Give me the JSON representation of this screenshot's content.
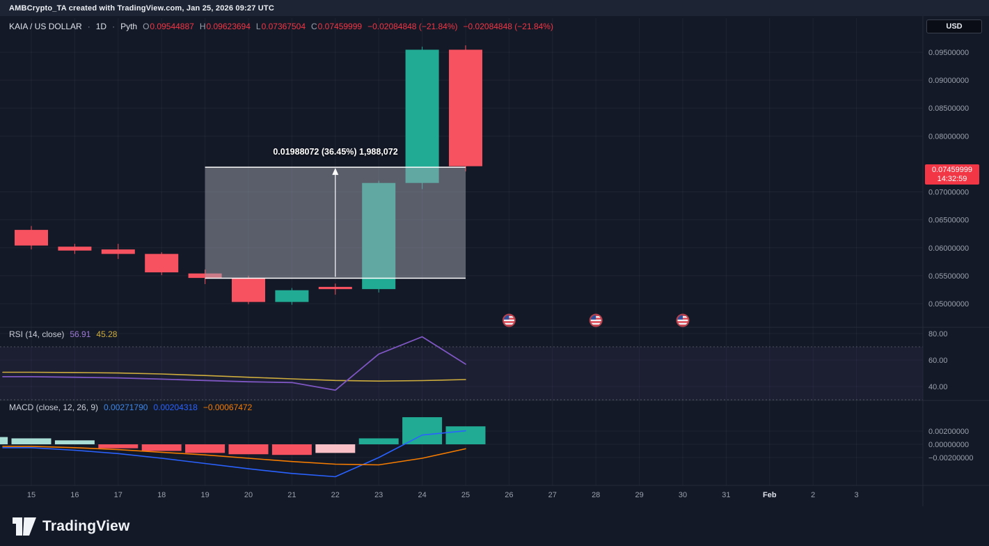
{
  "header": {
    "attribution": "AMBCrypto_TA created with TradingView.com, Jan 25, 2026 09:27 UTC",
    "currency_button": "USD"
  },
  "legend": {
    "symbol": "KAIA / US DOLLAR",
    "separator": "·",
    "interval": "1D",
    "source": "Pyth",
    "ohlc": [
      {
        "prefix": "O",
        "value": "0.09544887"
      },
      {
        "prefix": "H",
        "value": "0.09623694"
      },
      {
        "prefix": "L",
        "value": "0.07367504"
      },
      {
        "prefix": "C",
        "value": "0.07459999"
      }
    ],
    "change_abs_pct": "−0.02084848 (−21.84%)",
    "change_abs_pct_2": "−0.02084848 (−21.84%)"
  },
  "price_scale": {
    "ticks": [
      {
        "label": "0.09500000",
        "value": 0.095
      },
      {
        "label": "0.09000000",
        "value": 0.09
      },
      {
        "label": "0.08500000",
        "value": 0.085
      },
      {
        "label": "0.08000000",
        "value": 0.08
      },
      {
        "label": "0.07000000",
        "value": 0.07
      },
      {
        "label": "0.06500000",
        "value": 0.065
      },
      {
        "label": "0.06000000",
        "value": 0.06
      },
      {
        "label": "0.05500000",
        "value": 0.055
      },
      {
        "label": "0.05000000",
        "value": 0.05
      }
    ],
    "badge": {
      "price": "0.07459999",
      "time": "14:32:59",
      "color": "#f23645"
    }
  },
  "rsi_pane": {
    "title": "RSI (14, close)",
    "rsi_value": "56.91",
    "ma_value": "45.28",
    "ticks": [
      {
        "label": "80.00",
        "value": 80
      },
      {
        "label": "60.00",
        "value": 60
      },
      {
        "label": "40.00",
        "value": 40
      }
    ]
  },
  "macd_pane": {
    "title": "MACD (close, 12, 26, 9)",
    "histogram_value": "0.00271790",
    "macd_value": "0.00204318",
    "signal_value": "−0.00067472",
    "ticks": [
      {
        "label": "0.00200000",
        "value": 0.002
      },
      {
        "label": "0.00000000",
        "value": 0
      },
      {
        "label": "−0.00200000",
        "value": -0.002
      }
    ]
  },
  "time_axis": {
    "labels": [
      "15",
      "16",
      "17",
      "18",
      "19",
      "20",
      "21",
      "22",
      "23",
      "24",
      "25",
      "26",
      "27",
      "28",
      "29",
      "30",
      "31",
      "Feb",
      "2",
      "3"
    ],
    "highlight": "Feb"
  },
  "footer": {
    "brand": "TradingView"
  },
  "chart_data": [
    {
      "type": "candlestick",
      "title": "KAIA / US DOLLAR, 1D, Pyth",
      "x": [
        "Jan 15",
        "Jan 16",
        "Jan 17",
        "Jan 18",
        "Jan 19",
        "Jan 20",
        "Jan 21",
        "Jan 22",
        "Jan 23",
        "Jan 24",
        "Jan 25"
      ],
      "ohlc": [
        [
          0.0632,
          0.0639,
          0.0597,
          0.0604
        ],
        [
          0.0602,
          0.0607,
          0.0589,
          0.0595
        ],
        [
          0.0597,
          0.0607,
          0.058,
          0.0589
        ],
        [
          0.0589,
          0.0592,
          0.0551,
          0.0556
        ],
        [
          0.0554,
          0.0561,
          0.0535,
          0.0546
        ],
        [
          0.0546,
          0.055,
          0.0499,
          0.0503
        ],
        [
          0.0503,
          0.0528,
          0.0498,
          0.0524
        ],
        [
          0.053,
          0.0536,
          0.0516,
          0.0526
        ],
        [
          0.0526,
          0.072,
          0.052,
          0.0716
        ],
        [
          0.0716,
          0.096,
          0.0705,
          0.09544887
        ],
        [
          0.09544887,
          0.09623694,
          0.07367504,
          0.07459999
        ]
      ],
      "ylim": [
        0.0483,
        0.1005
      ],
      "up_color": "#22ab94",
      "down_color": "#f7525f",
      "measure": {
        "from_index": 4,
        "to_index": 10,
        "price_low": 0.0545424,
        "price_high": 0.0744231,
        "label": "0.01988072 (36.45%) 1,988,072"
      },
      "events": {
        "type": "us-economic-event",
        "indices": [
          11,
          13,
          15
        ],
        "dates": [
          "Jan 26",
          "Jan 28",
          "Jan 30"
        ]
      }
    },
    {
      "type": "line",
      "title": "RSI (14, close)",
      "ylim": [
        25,
        85
      ],
      "bands": [
        70,
        30
      ],
      "series": [
        {
          "name": "RSI",
          "color": "#7e57c2",
          "values": [
            47.4,
            47.0,
            46.5,
            45.6,
            44.6,
            43.6,
            43.0,
            37.2,
            64.5,
            77.6,
            56.91
          ]
        },
        {
          "name": "RSI-based MA",
          "color": "#cfae3d",
          "values": [
            50.8,
            50.6,
            50.2,
            49.5,
            48.3,
            47.0,
            45.8,
            44.6,
            44.1,
            44.5,
            45.28
          ]
        }
      ]
    },
    {
      "type": "macd",
      "title": "MACD (close, 12, 26, 9)",
      "macd": {
        "color": "#2962ff",
        "values": [
          -0.0005,
          -0.0009,
          -0.0014,
          -0.0021,
          -0.0029,
          -0.0037,
          -0.0044,
          -0.0049,
          -0.002,
          0.0014,
          0.00204318
        ]
      },
      "signal": {
        "color": "#f57c00",
        "values": [
          -0.0003,
          -0.0005,
          -0.0008,
          -0.0012,
          -0.0016,
          -0.0021,
          -0.0026,
          -0.003,
          -0.0031,
          -0.0021,
          -0.00067472
        ]
      },
      "histogram": {
        "values": [
          0.0009,
          0.0006,
          -0.0006,
          -0.001,
          -0.0013,
          -0.0015,
          -0.0016,
          -0.0013,
          0.0009,
          0.0041,
          0.0027179
        ],
        "colors": [
          "#a8ded6",
          "#a8ded6",
          "#f7525f",
          "#f7525f",
          "#f7525f",
          "#f7525f",
          "#f7525f",
          "#f9c1c7",
          "#22ab94",
          "#22ab94",
          "#22ab94"
        ],
        "lead": {
          "value": 0.0011,
          "color": "#a8ded6"
        }
      }
    }
  ]
}
